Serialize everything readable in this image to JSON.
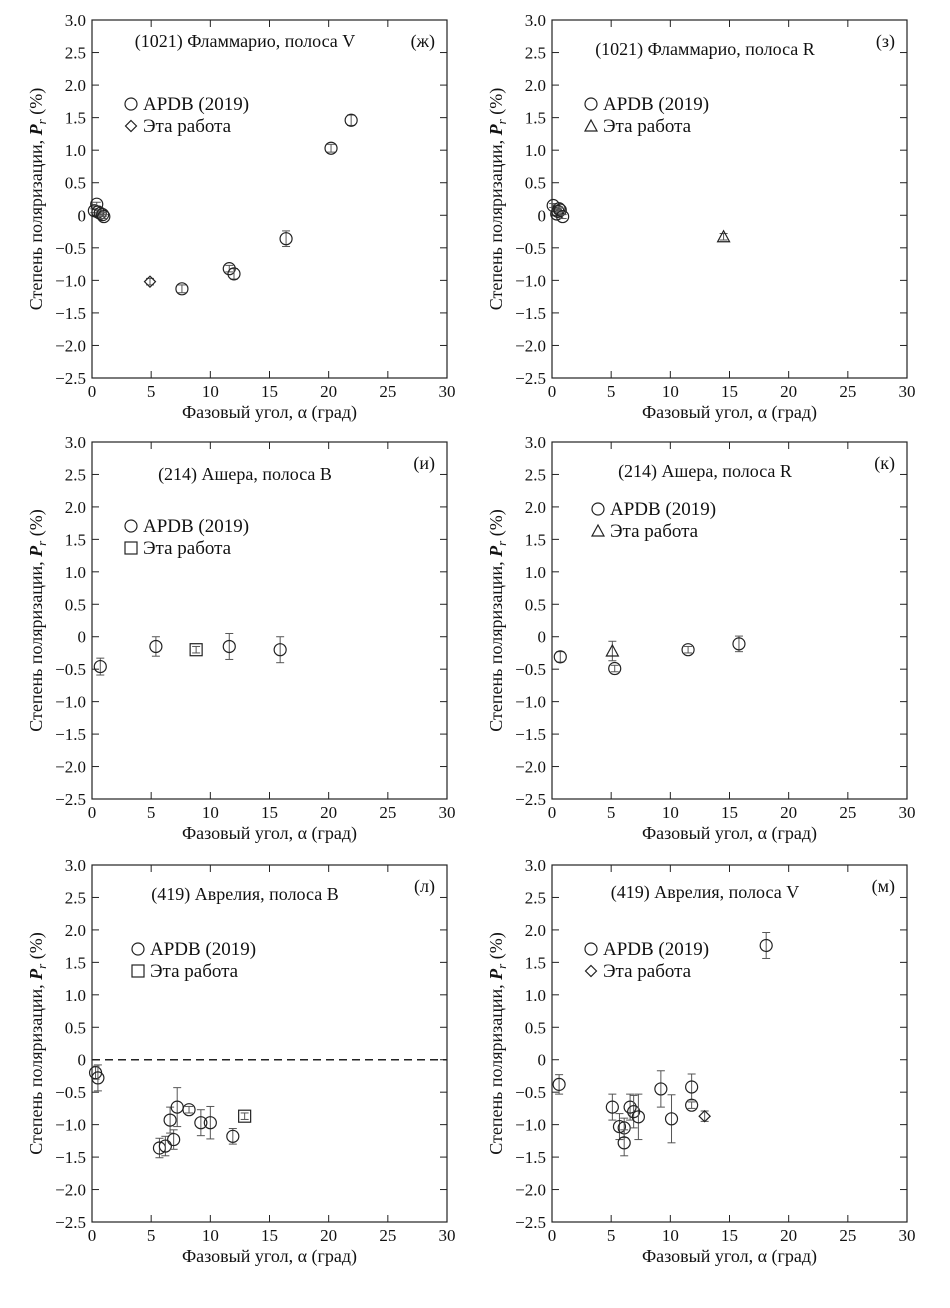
{
  "chart_data": [
    {
      "type": "scatter",
      "panel_letter": "(ж)",
      "title": "(1021) Фламмарио, полоса V",
      "xlabel": "Фазовый угол, α (град)",
      "ylabel": "Степень поляризации, P_r (%)",
      "xlim": [
        0,
        30
      ],
      "ylim": [
        -2.5,
        3.0
      ],
      "xticks": [
        0,
        5,
        10,
        15,
        20,
        25,
        30
      ],
      "yticks": [
        -2.5,
        -2.0,
        -1.5,
        -1.0,
        -0.5,
        0,
        0.5,
        1.0,
        1.5,
        2.0,
        2.5,
        3.0
      ],
      "legend_position": "top-left",
      "zero_line": false,
      "series": [
        {
          "name": "APDB (2019)",
          "marker": "circle",
          "x": [
            0.2,
            0.4,
            0.5,
            0.7,
            0.9,
            1.0,
            7.6,
            11.6,
            12.0,
            16.4,
            20.2,
            21.9
          ],
          "y": [
            0.07,
            0.17,
            0.05,
            0.03,
            0.01,
            -0.02,
            -1.13,
            -0.82,
            -0.9,
            -0.36,
            1.03,
            1.46
          ],
          "err": [
            0.03,
            0.03,
            0.03,
            0.03,
            0.03,
            0.03,
            0.06,
            0.05,
            0.08,
            0.12,
            0.06,
            0.08
          ]
        },
        {
          "name": "Эта работа",
          "marker": "diamond",
          "x": [
            4.9
          ],
          "y": [
            -1.02
          ],
          "err": [
            0.05
          ]
        }
      ]
    },
    {
      "type": "scatter",
      "panel_letter": "(з)",
      "title": "(1021) Фламмарио, полоса R",
      "xlabel": "Фазовый угол, α (град)",
      "ylabel": "Степень поляризации, P_r (%)",
      "xlim": [
        0,
        30
      ],
      "ylim": [
        -2.5,
        3.0
      ],
      "xticks": [
        0,
        5,
        10,
        15,
        20,
        25,
        30
      ],
      "yticks": [
        -2.5,
        -2.0,
        -1.5,
        -1.0,
        -0.5,
        0,
        0.5,
        1.0,
        1.5,
        2.0,
        2.5,
        3.0
      ],
      "legend_position": "top-left",
      "zero_line": false,
      "series": [
        {
          "name": "APDB (2019)",
          "marker": "circle",
          "x": [
            0.1,
            0.4,
            0.5,
            0.6,
            0.7,
            0.9
          ],
          "y": [
            0.15,
            0.02,
            0.06,
            0.1,
            0.08,
            -0.02
          ],
          "err": [
            0.03,
            0.03,
            0.03,
            0.03,
            0.03,
            0.03
          ]
        },
        {
          "name": "Эта работа",
          "marker": "triangle",
          "x": [
            14.5
          ],
          "y": [
            -0.33
          ],
          "err": [
            0.05
          ]
        }
      ]
    },
    {
      "type": "scatter",
      "panel_letter": "(и)",
      "title": "(214) Ашера, полоса B",
      "xlabel": "Фазовый угол, α (град)",
      "ylabel": "Степень поляризации, P_r (%)",
      "xlim": [
        0,
        30
      ],
      "ylim": [
        -2.5,
        3.0
      ],
      "xticks": [
        0,
        5,
        10,
        15,
        20,
        25,
        30
      ],
      "yticks": [
        -2.5,
        -2.0,
        -1.5,
        -1.0,
        -0.5,
        0,
        0.5,
        1.0,
        1.5,
        2.0,
        2.5,
        3.0
      ],
      "legend_position": "top-left",
      "zero_line": false,
      "series": [
        {
          "name": "APDB (2019)",
          "marker": "circle",
          "x": [
            0.7,
            5.4,
            11.6,
            15.9
          ],
          "y": [
            -0.46,
            -0.15,
            -0.15,
            -0.2
          ],
          "err": [
            0.13,
            0.15,
            0.2,
            0.2
          ]
        },
        {
          "name": "Эта работа",
          "marker": "square",
          "x": [
            8.8
          ],
          "y": [
            -0.2
          ],
          "err": [
            0.05
          ]
        }
      ]
    },
    {
      "type": "scatter",
      "panel_letter": "(к)",
      "title": "(214) Ашера, полоса R",
      "xlabel": "Фазовый угол, α (град)",
      "ylabel": "Степень поляризации, P_r (%)",
      "xlim": [
        0,
        30
      ],
      "ylim": [
        -2.5,
        3.0
      ],
      "xticks": [
        0,
        5,
        10,
        15,
        20,
        25,
        30
      ],
      "yticks": [
        -2.5,
        -2.0,
        -1.5,
        -1.0,
        -0.5,
        0,
        0.5,
        1.0,
        1.5,
        2.0,
        2.5,
        3.0
      ],
      "legend_position": "top-left",
      "zero_line": false,
      "series": [
        {
          "name": "APDB (2019)",
          "marker": "circle",
          "x": [
            0.7,
            5.3,
            11.5,
            15.8
          ],
          "y": [
            -0.31,
            -0.49,
            -0.2,
            -0.11
          ],
          "err": [
            0.08,
            0.05,
            0.05,
            0.12
          ]
        },
        {
          "name": "Эта работа",
          "marker": "triangle",
          "x": [
            5.1
          ],
          "y": [
            -0.22
          ],
          "err": [
            0.15
          ]
        }
      ]
    },
    {
      "type": "scatter",
      "panel_letter": "(л)",
      "title": "(419) Аврелия, полоса B",
      "xlabel": "Фазовый угол, α (град)",
      "ylabel": "Степень поляризации, P_r (%)",
      "xlim": [
        0,
        30
      ],
      "ylim": [
        -2.5,
        3.0
      ],
      "xticks": [
        0,
        5,
        10,
        15,
        20,
        25,
        30
      ],
      "yticks": [
        -2.5,
        -2.0,
        -1.5,
        -1.0,
        -0.5,
        0,
        0.5,
        1.0,
        1.5,
        2.0,
        2.5,
        3.0
      ],
      "legend_position": "top-left",
      "zero_line": true,
      "series": [
        {
          "name": "APDB (2019)",
          "marker": "circle",
          "x": [
            0.3,
            0.5,
            5.7,
            6.2,
            6.6,
            6.9,
            7.2,
            8.2,
            9.2,
            10.0,
            11.9
          ],
          "y": [
            -0.2,
            -0.28,
            -1.36,
            -1.33,
            -0.93,
            -1.23,
            -0.73,
            -0.77,
            -0.97,
            -0.97,
            -1.18
          ],
          "err": [
            0.1,
            0.2,
            0.15,
            0.15,
            0.2,
            0.15,
            0.3,
            0.05,
            0.2,
            0.25,
            0.12
          ]
        },
        {
          "name": "Эта работа",
          "marker": "square",
          "x": [
            12.9
          ],
          "y": [
            -0.87
          ],
          "err": [
            0.05
          ]
        }
      ]
    },
    {
      "type": "scatter",
      "panel_letter": "(м)",
      "title": "(419) Аврелия, полоса V",
      "xlabel": "Фазовый угол, α (град)",
      "ylabel": "Степень поляризации, P_r (%)",
      "xlim": [
        0,
        30
      ],
      "ylim": [
        -2.5,
        3.0
      ],
      "xticks": [
        0,
        5,
        10,
        15,
        20,
        25,
        30
      ],
      "yticks": [
        -2.5,
        -2.0,
        -1.5,
        -1.0,
        -0.5,
        0,
        0.5,
        1.0,
        1.5,
        2.0,
        2.5,
        3.0
      ],
      "legend_position": "top-left",
      "zero_line": false,
      "series": [
        {
          "name": "APDB (2019)",
          "marker": "circle",
          "x": [
            0.6,
            5.1,
            5.7,
            6.1,
            6.1,
            6.6,
            6.9,
            7.3,
            9.2,
            10.1,
            11.8,
            11.8,
            18.1
          ],
          "y": [
            -0.38,
            -0.73,
            -1.03,
            -1.05,
            -1.28,
            -0.73,
            -0.8,
            -0.88,
            -0.45,
            -0.91,
            -0.42,
            -0.7,
            1.76
          ],
          "err": [
            0.15,
            0.2,
            0.2,
            0.15,
            0.2,
            0.2,
            0.25,
            0.35,
            0.28,
            0.37,
            0.2,
            0.05,
            0.2
          ]
        },
        {
          "name": "Эта работа",
          "marker": "diamond",
          "x": [
            12.9
          ],
          "y": [
            -0.87
          ],
          "err": [
            0.08
          ]
        }
      ]
    }
  ]
}
